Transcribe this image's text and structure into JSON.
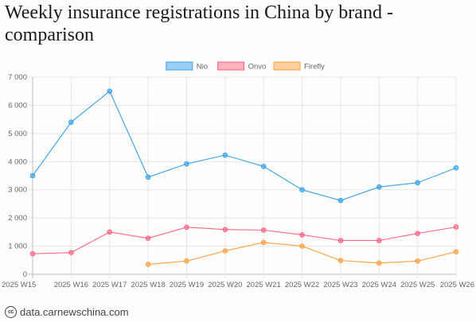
{
  "title": "Weekly insurance registrations in China by brand - comparison",
  "source": "data.carnewschina.com",
  "icons": {
    "source": "cc-license-icon"
  },
  "chart_data": {
    "type": "line",
    "title": "Weekly insurance registrations in China by brand - comparison",
    "xlabel": "",
    "ylabel": "",
    "ylim": [
      0,
      7000
    ],
    "yticks": [
      "0",
      "1 000",
      "2 000",
      "3 000",
      "4 000",
      "5 000",
      "6 000",
      "7 000"
    ],
    "grid": true,
    "legend_position": "top",
    "categories": [
      "2025 W15",
      "2025 W16",
      "2025 W17",
      "2025 W18",
      "2025 W19",
      "2025 W20",
      "2025 W21",
      "2025 W22",
      "2025 W23",
      "2025 W24",
      "2025 W25",
      "2025 W26"
    ],
    "series": [
      {
        "name": "Nio",
        "color": "#36a2eb",
        "values": [
          3500,
          5400,
          6500,
          3450,
          3920,
          4230,
          3830,
          3000,
          2620,
          3100,
          3250,
          3780
        ]
      },
      {
        "name": "Onvo",
        "color": "#ff6384",
        "values": [
          730,
          770,
          1500,
          1280,
          1670,
          1590,
          1570,
          1400,
          1200,
          1200,
          1450,
          1680
        ]
      },
      {
        "name": "Firefly",
        "color": "#ff9f40",
        "values": [
          null,
          null,
          null,
          350,
          470,
          830,
          1130,
          1000,
          490,
          400,
          470,
          800
        ]
      }
    ]
  }
}
